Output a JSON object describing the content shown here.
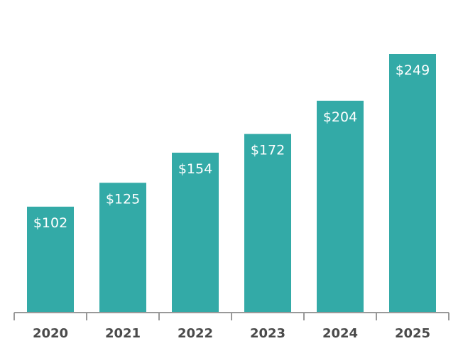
{
  "chart_data": {
    "type": "bar",
    "categories": [
      "2020",
      "2021",
      "2022",
      "2023",
      "2024",
      "2025"
    ],
    "values": [
      102,
      125,
      154,
      172,
      204,
      249
    ],
    "data_labels": [
      "$102",
      "$125",
      "$154",
      "$172",
      "$204",
      "$249"
    ],
    "title": "",
    "xlabel": "",
    "ylabel": "",
    "ylim": [
      0,
      249
    ],
    "grid": false,
    "legend": "none",
    "colors": {
      "bar": "#33aaa7",
      "axis": "#999999",
      "label": "#ffffff",
      "tick": "#4a4a4a"
    }
  }
}
